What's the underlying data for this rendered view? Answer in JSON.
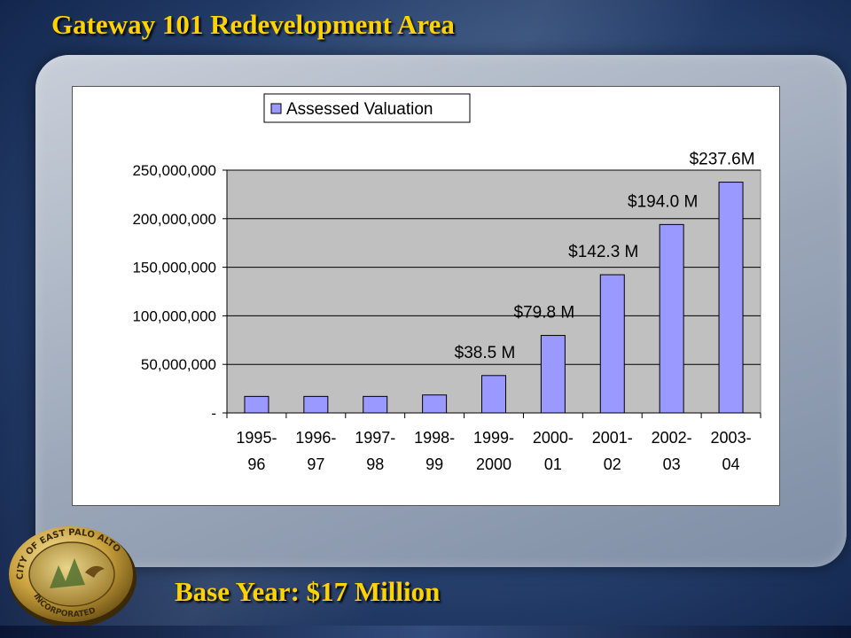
{
  "slide": {
    "title": "Gateway 101 Redevelopment Area",
    "footer": "Base Year: $17 Million",
    "colors": {
      "title_text": "#ffd200",
      "bar_fill": "#9999ff",
      "plot_bg": "#c0c0c0"
    }
  },
  "seal": {
    "icon": "city-seal-icon",
    "text_top": "CITY OF EAST PALO ALTO",
    "text_bottom": "INCORPORATED"
  },
  "chart_data": {
    "type": "bar",
    "title": "",
    "xlabel": "",
    "ylabel": "",
    "ylim": [
      0,
      250000000
    ],
    "grid": true,
    "legend_position": "top-center",
    "categories": [
      "1995-96",
      "1996-97",
      "1997-98",
      "1998-99",
      "1999-2000",
      "2000-01",
      "2001-02",
      "2002-03",
      "2003-04"
    ],
    "category_lines": [
      [
        "1995-",
        "96"
      ],
      [
        "1996-",
        "97"
      ],
      [
        "1997-",
        "98"
      ],
      [
        "1998-",
        "99"
      ],
      [
        "1999-",
        "2000"
      ],
      [
        "2000-",
        "01"
      ],
      [
        "2001-",
        "02"
      ],
      [
        "2002-",
        "03"
      ],
      [
        "2003-",
        "04"
      ]
    ],
    "yticks": [
      0,
      50000000,
      100000000,
      150000000,
      200000000,
      250000000
    ],
    "ytick_labels": [
      "-",
      "50,000,000",
      "100,000,000",
      "150,000,000",
      "200,000,000",
      "250,000,000"
    ],
    "series": [
      {
        "name": "Assessed Valuation",
        "values": [
          17000000,
          17000000,
          17000000,
          18500000,
          38500000,
          79800000,
          142300000,
          194000000,
          237600000
        ]
      }
    ],
    "annotations": [
      {
        "category": "1999-2000",
        "text": "$38.5 M"
      },
      {
        "category": "2000-01",
        "text": "$79.8 M"
      },
      {
        "category": "2001-02",
        "text": "$142.3 M"
      },
      {
        "category": "2002-03",
        "text": "$194.0 M"
      },
      {
        "category": "2003-04",
        "text": "$237.6M"
      }
    ]
  }
}
